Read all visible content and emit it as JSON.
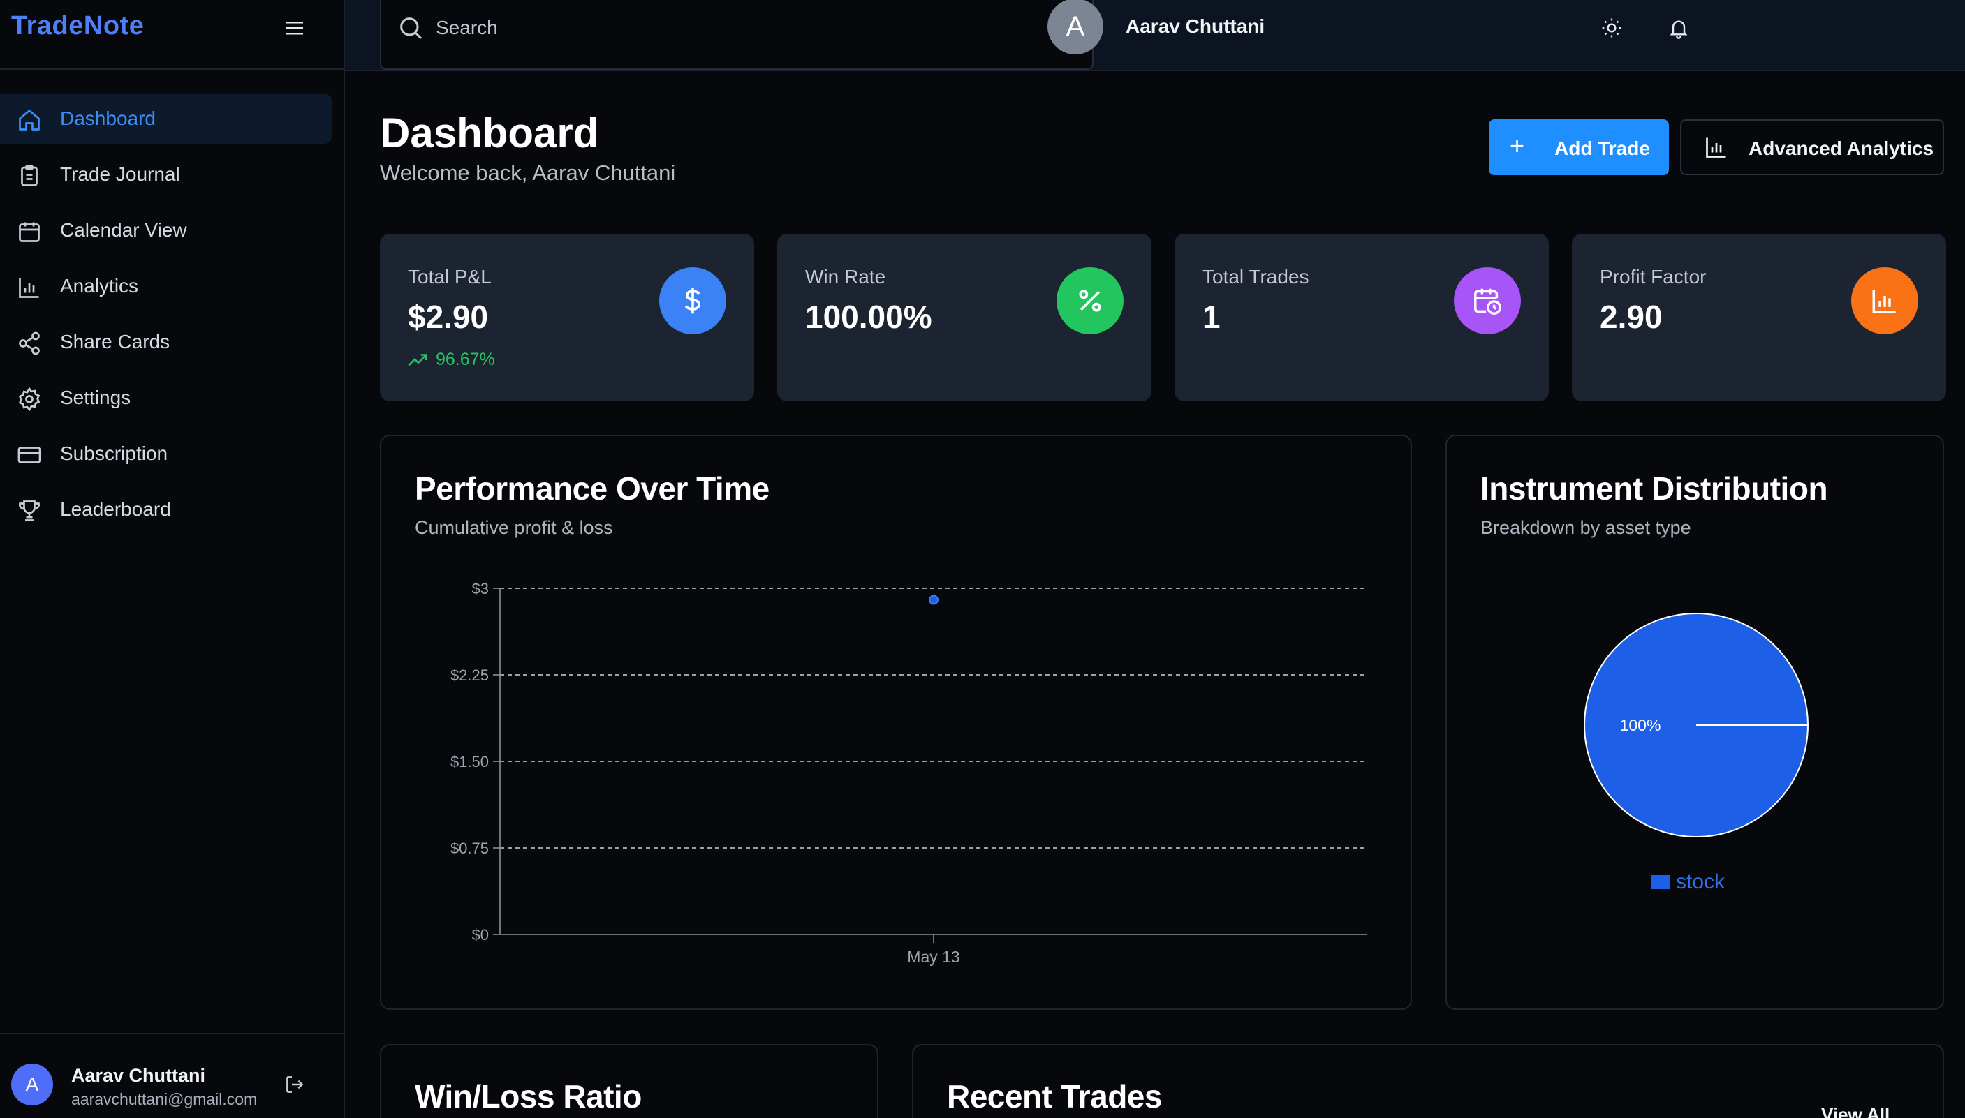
{
  "brand": "TradeNote",
  "sidebar": {
    "items": [
      {
        "label": "Dashboard",
        "icon": "home-icon",
        "active": true
      },
      {
        "label": "Trade Journal",
        "icon": "clipboard-icon"
      },
      {
        "label": "Calendar View",
        "icon": "calendar-icon"
      },
      {
        "label": "Analytics",
        "icon": "bar-chart-icon"
      },
      {
        "label": "Share Cards",
        "icon": "share-icon"
      },
      {
        "label": "Settings",
        "icon": "gear-icon"
      },
      {
        "label": "Subscription",
        "icon": "credit-card-icon"
      },
      {
        "label": "Leaderboard",
        "icon": "trophy-icon"
      }
    ],
    "user": {
      "initial": "A",
      "name": "Aarav Chuttani",
      "email": "aaravchuttani@gmail.com"
    }
  },
  "header": {
    "search_placeholder": "Search",
    "user": {
      "initial": "A",
      "name": "Aarav Chuttani"
    }
  },
  "page": {
    "title": "Dashboard",
    "subtitle": "Welcome back, Aarav Chuttani",
    "add_trade_label": "Add Trade",
    "analytics_label": "Advanced Analytics"
  },
  "stats": [
    {
      "label": "Total P&L",
      "value": "$2.90",
      "trend": "96.67%",
      "color": "#3b82f6",
      "icon": "dollar-icon"
    },
    {
      "label": "Win Rate",
      "value": "100.00%",
      "color": "#22c55e",
      "icon": "percent-icon"
    },
    {
      "label": "Total Trades",
      "value": "1",
      "color": "#a855f7",
      "icon": "calendar-clock-icon"
    },
    {
      "label": "Profit Factor",
      "value": "2.90",
      "color": "#f97316",
      "icon": "bar-chart-icon"
    }
  ],
  "performance": {
    "title": "Performance Over Time",
    "subtitle": "Cumulative profit & loss"
  },
  "distribution": {
    "title": "Instrument Distribution",
    "subtitle": "Breakdown by asset type"
  },
  "winloss": {
    "title": "Win/Loss Ratio"
  },
  "recent": {
    "title": "Recent Trades",
    "view_all": "View All"
  },
  "chart_data": [
    {
      "type": "scatter",
      "title": "Performance Over Time",
      "subtitle": "Cumulative profit & loss",
      "x": [
        "May 13"
      ],
      "series": [
        {
          "values": [
            2.9
          ]
        }
      ],
      "ylim": [
        0,
        3
      ],
      "yticks": [
        "$0",
        "$0.75",
        "$1.50",
        "$2.25",
        "$3"
      ],
      "ytick_values": [
        0,
        0.75,
        1.5,
        2.25,
        3
      ],
      "grid": true,
      "color": "#1e5fe8"
    },
    {
      "type": "pie",
      "title": "Instrument Distribution",
      "subtitle": "Breakdown by asset type",
      "categories": [
        "stock"
      ],
      "values": [
        100
      ],
      "labels": [
        "100%"
      ],
      "legend": "bottom",
      "color": "#1e5fe8"
    }
  ]
}
